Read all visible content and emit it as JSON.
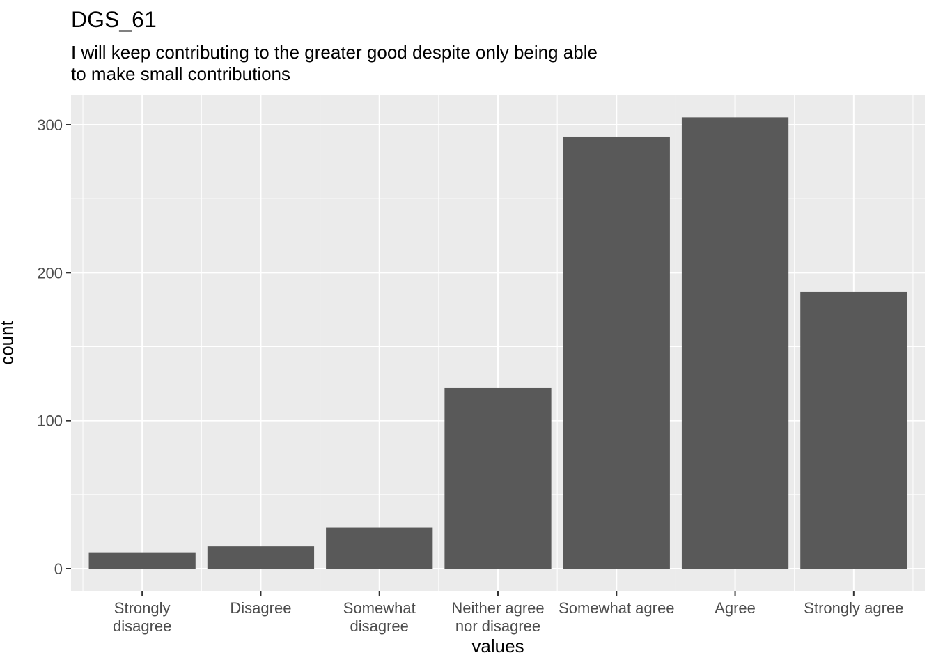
{
  "chart_data": {
    "type": "bar",
    "title": "DGS_61",
    "subtitle": [
      "I will keep contributing to the greater good despite only being able",
      "to make small contributions"
    ],
    "xlabel": "values",
    "ylabel": "count",
    "categories": [
      [
        "Strongly",
        "disagree"
      ],
      [
        "Disagree"
      ],
      [
        "Somewhat",
        "disagree"
      ],
      [
        "Neither agree",
        "nor disagree"
      ],
      [
        "Somewhat agree"
      ],
      [
        "Agree"
      ],
      [
        "Strongly agree"
      ]
    ],
    "values": [
      11,
      15,
      28,
      122,
      292,
      305,
      187
    ],
    "ylim": [
      -15,
      320
    ],
    "yticks": [
      0,
      100,
      200,
      300
    ],
    "grid": true,
    "colors": {
      "bar": "#595959",
      "panel": "#ebebeb",
      "grid": "#ffffff"
    }
  }
}
